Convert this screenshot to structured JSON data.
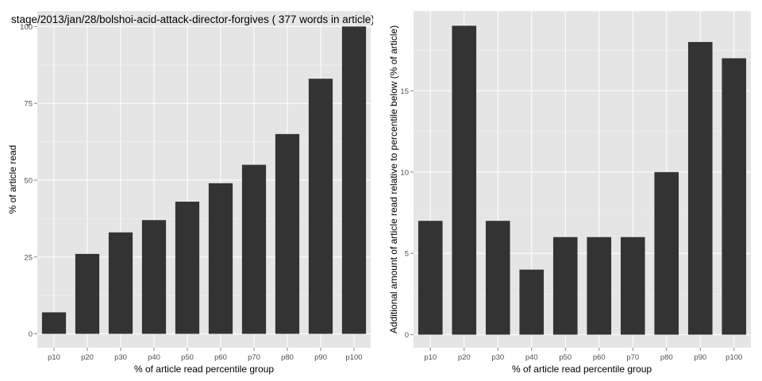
{
  "chart_data": [
    {
      "type": "bar",
      "title": "stage/2013/jan/28/bolshoi-acid-attack-director-forgives ( 377 words in article)",
      "xlabel": "% of article read percentile group",
      "ylabel": "% of article read",
      "categories": [
        "p10",
        "p20",
        "p30",
        "p40",
        "p50",
        "p60",
        "p70",
        "p80",
        "p90",
        "p100"
      ],
      "values": [
        7,
        26,
        33,
        37,
        43,
        49,
        55,
        65,
        83,
        100
      ],
      "ylim": [
        -4.5,
        105
      ],
      "yticks": [
        0,
        25,
        50,
        75,
        100
      ],
      "grid": true,
      "bar_color": "#333333",
      "panel_color": "#e5e5e5"
    },
    {
      "type": "bar",
      "title": "",
      "xlabel": "% of article read percentile group",
      "ylabel": "Additional amount of article read relative to percentile below (% of article)",
      "categories": [
        "p10",
        "p20",
        "p30",
        "p40",
        "p50",
        "p60",
        "p70",
        "p80",
        "p90",
        "p100"
      ],
      "values": [
        7,
        19,
        7,
        4,
        6,
        6,
        6,
        10,
        18,
        17
      ],
      "ylim": [
        -0.8,
        19.9
      ],
      "yticks": [
        0,
        5,
        10,
        15
      ],
      "grid": true,
      "bar_color": "#333333",
      "panel_color": "#e5e5e5"
    }
  ]
}
